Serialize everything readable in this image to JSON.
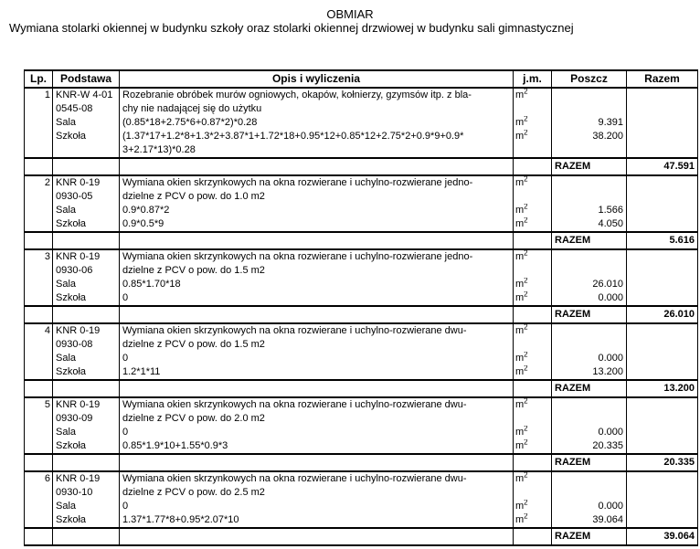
{
  "page": {
    "title": "OBMIAR",
    "subtitle": "Wymiana stolarki okiennej w budynku szkoły oraz stolarki okiennej drzwiowej w budynku sali gimnastycznej"
  },
  "table": {
    "headers": {
      "lp": "Lp.",
      "podstawa": "Podstawa",
      "opis": "Opis i wyliczenia",
      "jm": "j.m.",
      "poszcz": "Poszcz",
      "razem": "Razem"
    },
    "razem_label": "RAZEM",
    "sections": [
      {
        "lp": "1",
        "rows": [
          {
            "podstawa": "KNR-W 4-01",
            "opis": "Rozebranie obróbek murów ogniowych, okapów, kołnierzy, gzymsów itp. z bla-",
            "jm": "m2"
          },
          {
            "podstawa": "0545-08",
            "opis": "chy nie nadającej się do użytku"
          },
          {
            "podstawa": "Sala",
            "opis": "(0.85*18+2.75*6+0.87*2)*0.28",
            "jm": "m2",
            "poszcz": "9.391"
          },
          {
            "podstawa": "Szkoła",
            "opis": "(1.37*17+1.2*8+1.3*2+3.87*1+1.72*18+0.95*12+0.85*12+2.75*2+0.9*9+0.9*",
            "jm": "m2",
            "poszcz": "38.200"
          },
          {
            "opis": "3+2.17*13)*0.28"
          }
        ],
        "razem": "47.591"
      },
      {
        "lp": "2",
        "rows": [
          {
            "podstawa": "KNR 0-19",
            "opis": "Wymiana okien skrzynkowych na okna rozwierane i uchylno-rozwierane jedno-",
            "jm": "m2"
          },
          {
            "podstawa": "0930-05",
            "opis": "dzielne z PCV o pow. do 1.0 m2"
          },
          {
            "podstawa": "Sala",
            "opis": "0.9*0.87*2",
            "jm": "m2",
            "poszcz": "1.566"
          },
          {
            "podstawa": "Szkoła",
            "opis": "0.9*0.5*9",
            "jm": "m2",
            "poszcz": "4.050"
          }
        ],
        "razem": "5.616"
      },
      {
        "lp": "3",
        "rows": [
          {
            "podstawa": "KNR 0-19",
            "opis": "Wymiana okien skrzynkowych na okna rozwierane i uchylno-rozwierane jedno-",
            "jm": "m2"
          },
          {
            "podstawa": "0930-06",
            "opis": "dzielne z PCV o pow. do 1.5 m2"
          },
          {
            "podstawa": "Sala",
            "opis": "0.85*1.70*18",
            "jm": "m2",
            "poszcz": "26.010"
          },
          {
            "podstawa": "Szkoła",
            "opis": "0",
            "jm": "m2",
            "poszcz": "0.000"
          }
        ],
        "razem": "26.010"
      },
      {
        "lp": "4",
        "rows": [
          {
            "podstawa": "KNR 0-19",
            "opis": "Wymiana okien skrzynkowych na okna rozwierane i uchylno-rozwierane dwu-",
            "jm": "m2"
          },
          {
            "podstawa": "0930-08",
            "opis": "dzielne z PCV o pow. do 1.5 m2"
          },
          {
            "podstawa": "Sala",
            "opis": "0",
            "jm": "m2",
            "poszcz": "0.000"
          },
          {
            "podstawa": "Szkoła",
            "opis": "1.2*1*11",
            "jm": "m2",
            "poszcz": "13.200"
          }
        ],
        "razem": "13.200"
      },
      {
        "lp": "5",
        "rows": [
          {
            "podstawa": "KNR 0-19",
            "opis": "Wymiana okien skrzynkowych na okna rozwierane i uchylno-rozwierane dwu-",
            "jm": "m2"
          },
          {
            "podstawa": "0930-09",
            "opis": "dzielne z PCV o pow. do 2.0 m2"
          },
          {
            "podstawa": "Sala",
            "opis": "0",
            "jm": "m2",
            "poszcz": "0.000"
          },
          {
            "podstawa": "Szkoła",
            "opis": "0.85*1.9*10+1.55*0.9*3",
            "jm": "m2",
            "poszcz": "20.335"
          }
        ],
        "razem": "20.335"
      },
      {
        "lp": "6",
        "rows": [
          {
            "podstawa": "KNR 0-19",
            "opis": "Wymiana okien skrzynkowych na okna rozwierane i uchylno-rozwierane dwu-",
            "jm": "m2"
          },
          {
            "podstawa": "0930-10",
            "opis": "dzielne z PCV o pow. do 2.5 m2"
          },
          {
            "podstawa": "Sala",
            "opis": "0",
            "jm": "m2",
            "poszcz": "0.000"
          },
          {
            "podstawa": "Szkoła",
            "opis": "1.37*1.77*8+0.95*2.07*10",
            "jm": "m2",
            "poszcz": "39.064"
          }
        ],
        "razem": "39.064"
      }
    ]
  }
}
